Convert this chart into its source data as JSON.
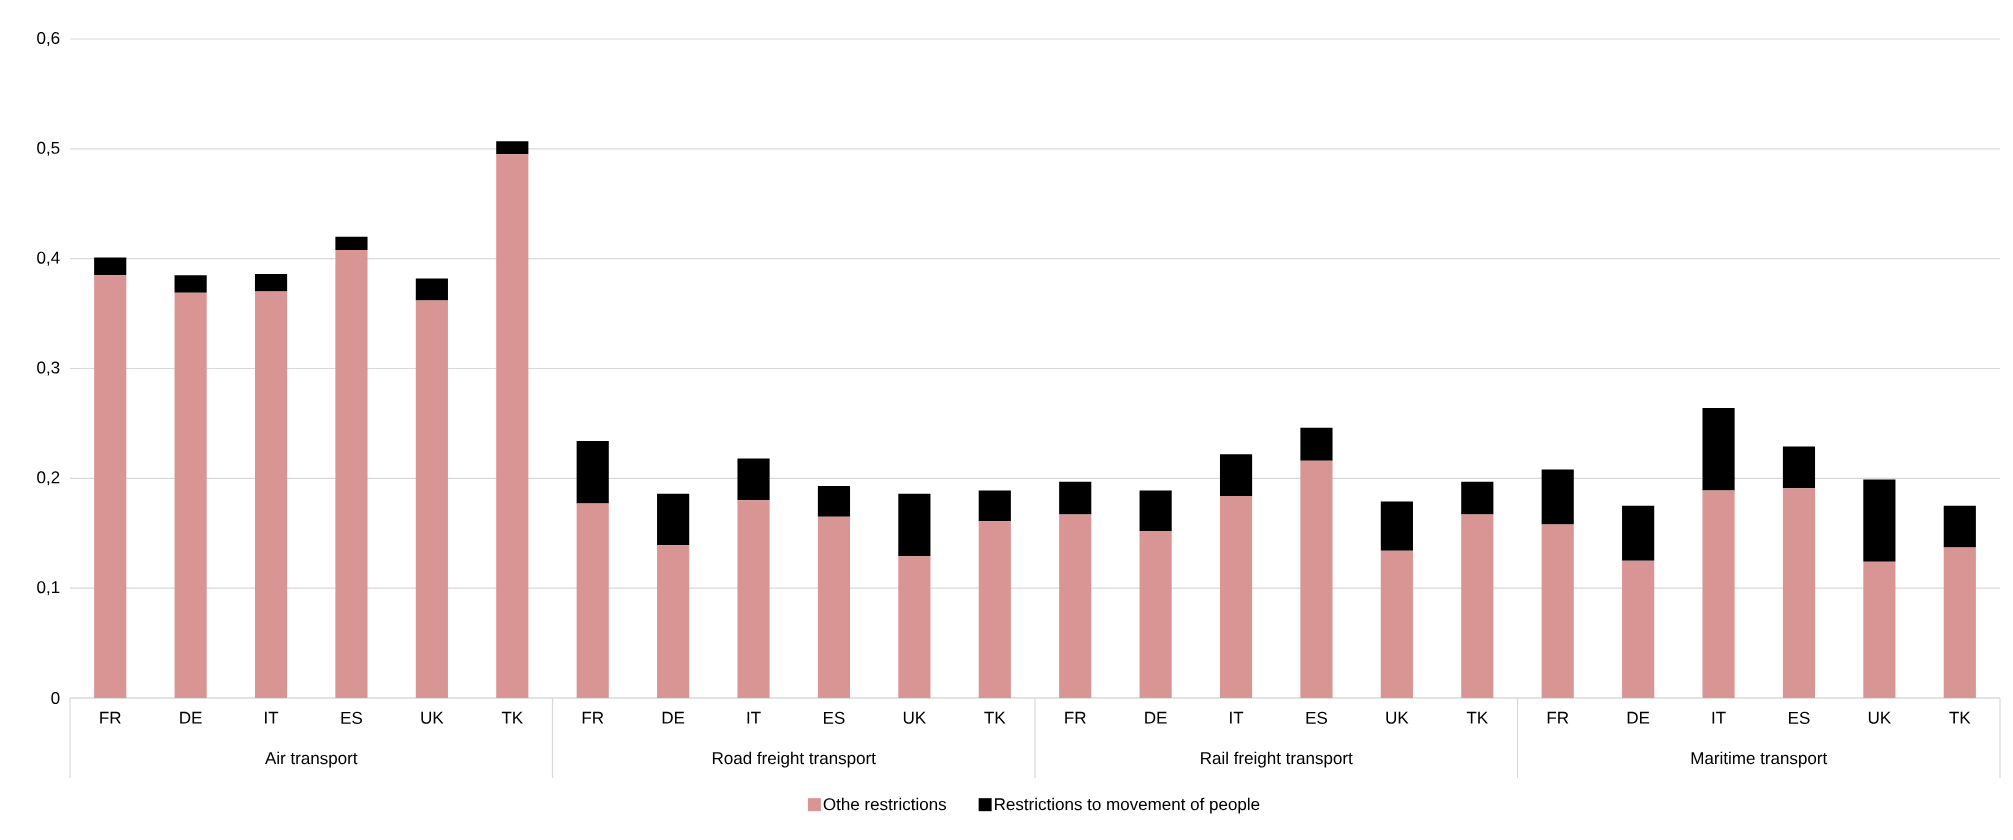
{
  "chart_data": {
    "type": "bar",
    "stacked": true,
    "categories": [
      "FR",
      "DE",
      "IT",
      "ES",
      "UK",
      "TK",
      "FR",
      "DE",
      "IT",
      "ES",
      "UK",
      "TK",
      "FR",
      "DE",
      "IT",
      "ES",
      "UK",
      "TK",
      "FR",
      "DE",
      "IT",
      "ES",
      "UK",
      "TK"
    ],
    "annotations": [
      "Air transport",
      "Road freight transport",
      "Rail freight transport",
      "Maritime transport"
    ],
    "series": [
      {
        "name": "Othe restrictions",
        "color": "#d99594",
        "values": [
          0.385,
          0.369,
          0.37,
          0.408,
          0.362,
          0.495,
          0.177,
          0.139,
          0.18,
          0.165,
          0.129,
          0.161,
          0.167,
          0.152,
          0.184,
          0.216,
          0.134,
          0.167,
          0.158,
          0.125,
          0.189,
          0.191,
          0.124,
          0.137
        ]
      },
      {
        "name": "Restrictions to movement of people",
        "color": "#000000",
        "values": [
          0.016,
          0.016,
          0.016,
          0.012,
          0.02,
          0.012,
          0.057,
          0.047,
          0.038,
          0.028,
          0.057,
          0.028,
          0.03,
          0.037,
          0.038,
          0.03,
          0.045,
          0.03,
          0.05,
          0.05,
          0.075,
          0.038,
          0.075,
          0.038
        ]
      }
    ],
    "ylim": [
      0,
      0.6
    ],
    "yticks": [
      0,
      {
        "value": 0.1,
        "label": "0,1"
      },
      {
        "value": 0.2,
        "label": "0,2"
      },
      {
        "value": 0.3,
        "label": "0,3"
      },
      {
        "value": 0.4,
        "label": "0,4"
      },
      {
        "value": 0.5,
        "label": "0,5"
      },
      {
        "value": 0.6,
        "label": "0,6"
      }
    ],
    "grid": "y",
    "legend": "bottom"
  }
}
